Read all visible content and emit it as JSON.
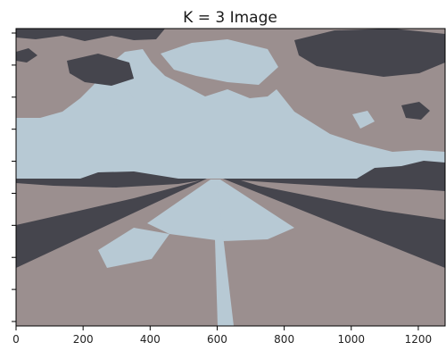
{
  "chart_data": {
    "type": "image",
    "title": "K = 3 Image",
    "xlabel": "",
    "ylabel": "",
    "x_ticks": [
      0,
      200,
      400,
      600,
      800,
      1000,
      1200
    ],
    "y_tick_count": 10,
    "y_tick_labels_visible": false,
    "xlim": [
      0,
      1280
    ],
    "k": 3,
    "palette": [
      {
        "name": "dark",
        "color": "#45454d"
      },
      {
        "name": "mid",
        "color": "#9b8f8f"
      },
      {
        "name": "light",
        "color": "#b7c9d4"
      }
    ]
  }
}
